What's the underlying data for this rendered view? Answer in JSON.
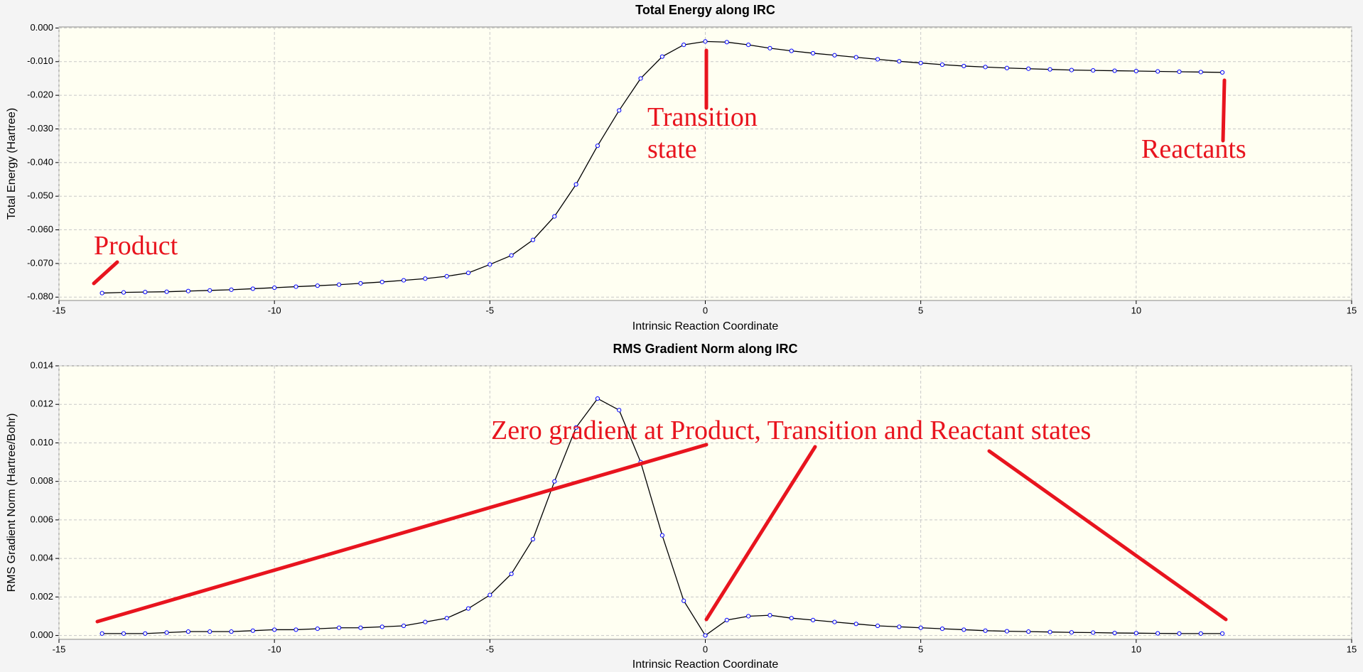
{
  "chart_data": [
    {
      "type": "line",
      "title": "Total Energy along IRC",
      "x_label": "Intrinsic Reaction Coordinate",
      "y_label": "Total Energy (Hartree)",
      "x": [
        -14,
        -13.5,
        -13,
        -12.5,
        -12,
        -11.5,
        -11,
        -10.5,
        -10,
        -9.5,
        -9,
        -8.5,
        -8,
        -7.5,
        -7,
        -6.5,
        -6,
        -5.5,
        -5,
        -4.5,
        -4,
        -3.5,
        -3,
        -2.5,
        -2,
        -1.5,
        -1,
        -0.5,
        0,
        0.5,
        1,
        1.5,
        2,
        2.5,
        3,
        3.5,
        4,
        4.5,
        5,
        5.5,
        6,
        6.5,
        7,
        7.5,
        8,
        8.5,
        9,
        9.5,
        10,
        10.5,
        11,
        11.5,
        12
      ],
      "values": [
        -0.0788,
        -0.0786,
        -0.0785,
        -0.0784,
        -0.0782,
        -0.078,
        -0.0778,
        -0.0775,
        -0.0772,
        -0.0769,
        -0.0766,
        -0.0763,
        -0.0759,
        -0.0755,
        -0.075,
        -0.0745,
        -0.0738,
        -0.0728,
        -0.0703,
        -0.0676,
        -0.063,
        -0.056,
        -0.0465,
        -0.035,
        -0.0245,
        -0.015,
        -0.0085,
        -0.005,
        -0.004,
        -0.0042,
        -0.005,
        -0.006,
        -0.0068,
        -0.0075,
        -0.0081,
        -0.0087,
        -0.0093,
        -0.0099,
        -0.0104,
        -0.0109,
        -0.0113,
        -0.0116,
        -0.0119,
        -0.0121,
        -0.0123,
        -0.0125,
        -0.0126,
        -0.0127,
        -0.0128,
        -0.0129,
        -0.013,
        -0.0131,
        -0.0132
      ],
      "color": "#0000ff",
      "line_color": "#000000",
      "xlim": [
        -15,
        15
      ],
      "xticks": [
        -15,
        -10,
        -5,
        0,
        5,
        10,
        15
      ],
      "ylim": [
        -0.081,
        0.0003
      ],
      "yticks": [
        {
          "value": 0,
          "label": "0.000"
        },
        {
          "value": -0.01,
          "label": "-0.010"
        },
        {
          "value": -0.02,
          "label": "-0.020"
        },
        {
          "value": -0.03,
          "label": "-0.030"
        },
        {
          "value": -0.04,
          "label": "-0.040"
        },
        {
          "value": -0.05,
          "label": "-0.050"
        },
        {
          "value": -0.06,
          "label": "-0.060"
        },
        {
          "value": -0.07,
          "label": "-0.070"
        },
        {
          "value": -0.08,
          "label": "-0.080"
        }
      ],
      "grid": true,
      "annotations": [
        "Product",
        "Transition",
        "state",
        "Reactants"
      ]
    },
    {
      "type": "line",
      "title": "RMS Gradient Norm along IRC",
      "x_label": "Intrinsic Reaction Coordinate",
      "y_label": "RMS Gradient Norm (Hartree/Bohr)",
      "x": [
        -14,
        -13.5,
        -13,
        -12.5,
        -12,
        -11.5,
        -11,
        -10.5,
        -10,
        -9.5,
        -9,
        -8.5,
        -8,
        -7.5,
        -7,
        -6.5,
        -6,
        -5.5,
        -5,
        -4.5,
        -4,
        -3.5,
        -3,
        -2.5,
        -2,
        -1.5,
        -1,
        -0.5,
        0,
        0.5,
        1,
        1.5,
        2,
        2.5,
        3,
        3.5,
        4,
        4.5,
        5,
        5.5,
        6,
        6.5,
        7,
        7.5,
        8,
        8.5,
        9,
        9.5,
        10,
        10.5,
        11,
        11.5,
        12
      ],
      "values": [
        0.0001,
        0.0001,
        0.0001,
        0.00015,
        0.0002,
        0.0002,
        0.0002,
        0.00025,
        0.0003,
        0.0003,
        0.00035,
        0.0004,
        0.0004,
        0.00045,
        0.0005,
        0.0007,
        0.0009,
        0.0014,
        0.0021,
        0.0032,
        0.005,
        0.008,
        0.0108,
        0.0123,
        0.0117,
        0.009,
        0.0052,
        0.0018,
        0,
        0.0008,
        0.001,
        0.00105,
        0.0009,
        0.0008,
        0.0007,
        0.0006,
        0.0005,
        0.00045,
        0.0004,
        0.00035,
        0.0003,
        0.00025,
        0.00022,
        0.0002,
        0.00018,
        0.00016,
        0.00015,
        0.00013,
        0.00012,
        0.00011,
        0.0001,
        0.0001,
        0.0001
      ],
      "color": "#0000ff",
      "line_color": "#000000",
      "xlim": [
        -15,
        15
      ],
      "xticks": [
        -15,
        -10,
        -5,
        0,
        5,
        10,
        15
      ],
      "ylim": [
        -0.0002,
        0.014
      ],
      "yticks": [
        {
          "value": 0,
          "label": "0.000"
        },
        {
          "value": 0.002,
          "label": "0.002"
        },
        {
          "value": 0.004,
          "label": "0.004"
        },
        {
          "value": 0.006,
          "label": "0.006"
        },
        {
          "value": 0.008,
          "label": "0.008"
        },
        {
          "value": 0.01,
          "label": "0.010"
        },
        {
          "value": 0.012,
          "label": "0.012"
        },
        {
          "value": 0.014,
          "label": "0.014"
        }
      ],
      "grid": true,
      "annotations": [
        "Zero gradient at Product, Transition and Reactant states"
      ]
    }
  ]
}
